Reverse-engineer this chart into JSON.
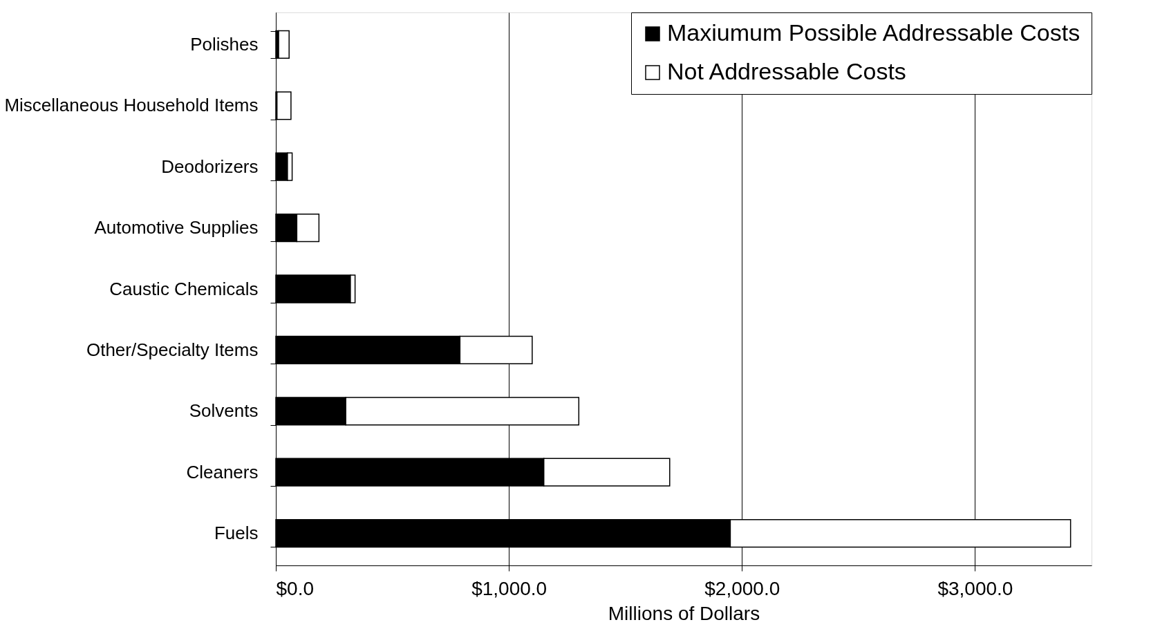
{
  "chart_data": {
    "type": "bar",
    "orientation": "horizontal",
    "stacked": true,
    "xlabel": "Millions of Dollars",
    "categories": [
      "Polishes",
      "Miscellaneous Household Items",
      "Deodorizers",
      "Automotive Supplies",
      "Caustic Chemicals",
      "Other/Specialty Items",
      "Solvents",
      "Cleaners",
      "Fuels"
    ],
    "series": [
      {
        "name": "Maxiumum Possible Addressable Costs",
        "color": "#000000",
        "values": [
          12,
          5,
          50,
          90,
          320,
          790,
          300,
          1150,
          1950
        ]
      },
      {
        "name": "Not Addressable Costs",
        "color": "#ffffff",
        "values": [
          45,
          60,
          20,
          95,
          20,
          310,
          1000,
          540,
          1460
        ]
      }
    ],
    "xlim": [
      0,
      3500
    ],
    "xticks": [
      {
        "value": 0,
        "label": "$0.0"
      },
      {
        "value": 1000,
        "label": "$1,000.0"
      },
      {
        "value": 2000,
        "label": "$2,000.0"
      },
      {
        "value": 3000,
        "label": "$3,000.0"
      }
    ],
    "grid": "x",
    "legend": "top right"
  }
}
